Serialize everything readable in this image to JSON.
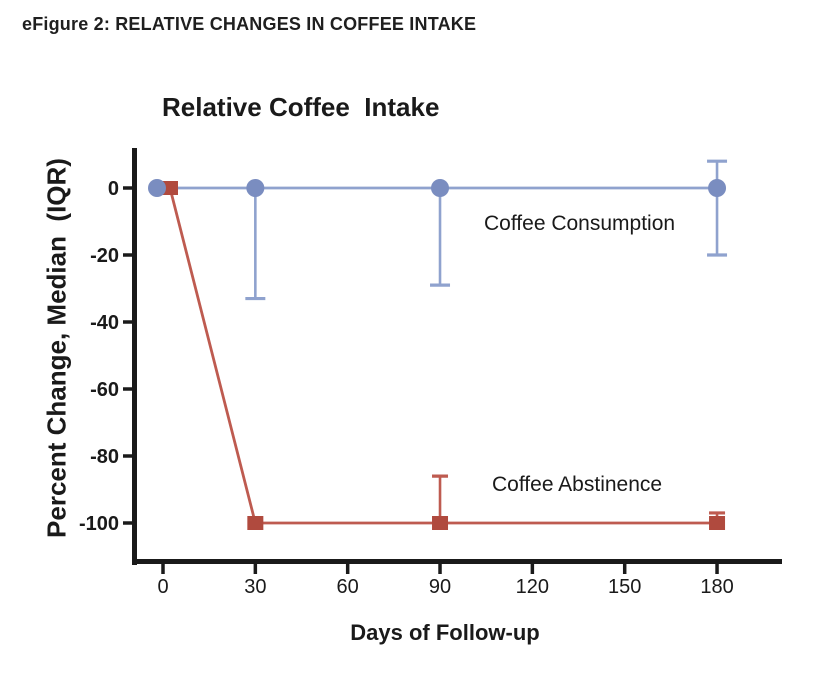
{
  "page": {
    "heading": "eFigure 2: RELATIVE CHANGES IN COFFEE INTAKE"
  },
  "chart_data": {
    "type": "line",
    "title": "Relative Coffee  Intake",
    "xlabel": "Days of Follow-up",
    "ylabel": "Percent Change, Median  (IQR)",
    "x_ticks": [
      0,
      30,
      60,
      90,
      120,
      150,
      180
    ],
    "y_ticks": [
      0,
      -20,
      -40,
      -60,
      -80,
      -100
    ],
    "xlim": [
      0,
      195
    ],
    "ylim": [
      -112,
      12
    ],
    "grid": false,
    "legend_position": "inline-annotations",
    "axis_color": "#1a1a1a",
    "text_color": "#1a1a1a",
    "series": [
      {
        "name": "Coffee Consumption",
        "marker": "circle",
        "marker_color": "#7A8DC0",
        "line_color": "#8FA2CE",
        "annotation": "Coffee Consumption",
        "points": [
          {
            "x": 0,
            "y": 0,
            "lo": null,
            "hi": null
          },
          {
            "x": 30,
            "y": 0,
            "lo": -33,
            "hi": null
          },
          {
            "x": 90,
            "y": 0,
            "lo": -29,
            "hi": null
          },
          {
            "x": 180,
            "y": 0,
            "lo": -20,
            "hi": 8
          }
        ]
      },
      {
        "name": "Coffee Abstinence",
        "marker": "square",
        "marker_color": "#B04A3E",
        "line_color": "#BE5B50",
        "annotation": "Coffee Abstinence",
        "points": [
          {
            "x": 0,
            "y": 0,
            "lo": null,
            "hi": null
          },
          {
            "x": 30,
            "y": -100,
            "lo": null,
            "hi": null
          },
          {
            "x": 90,
            "y": -100,
            "lo": null,
            "hi": -86
          },
          {
            "x": 180,
            "y": -100,
            "lo": null,
            "hi": -97
          }
        ]
      }
    ]
  }
}
